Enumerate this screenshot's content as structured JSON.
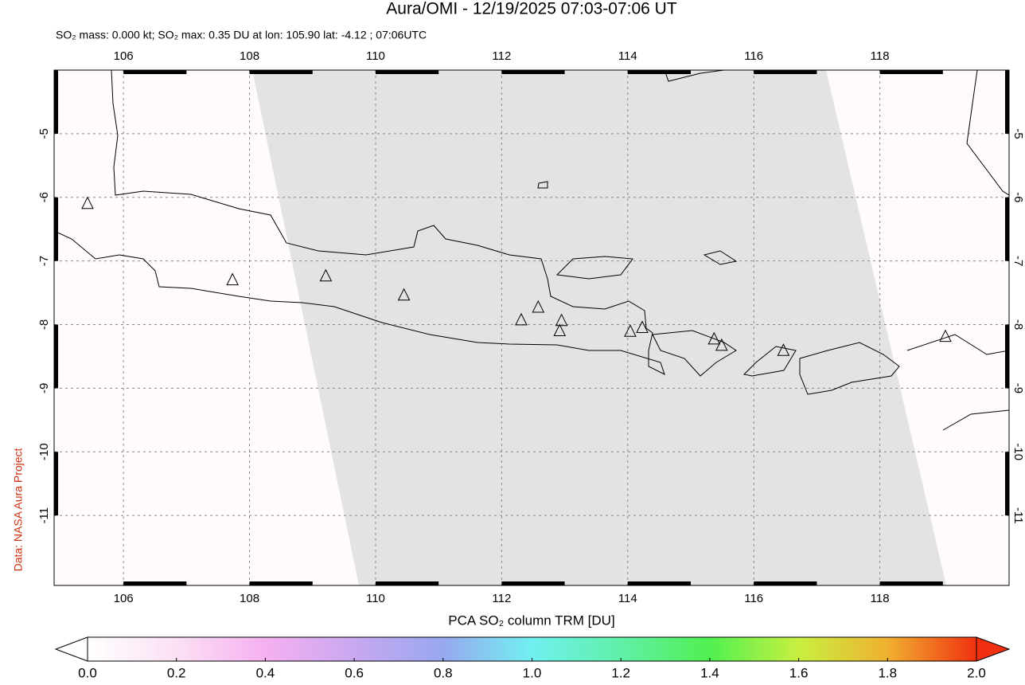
{
  "title": "Aura/OMI - 12/19/2025 07:03-07:06 UT",
  "subtitle": "SO₂ mass: 0.000 kt; SO₂ max: 0.35 DU at lon: 105.90 lat: -4.12 ; 07:06UTC",
  "credit": "Data: NASA Aura Project",
  "map": {
    "lon_lim": [
      104.9,
      120.05
    ],
    "lat_lim": [
      -4,
      -12.1
    ],
    "lon_ticks": [
      106,
      108,
      110,
      112,
      114,
      116,
      118
    ],
    "lat_ticks": [
      -5,
      -6,
      -7,
      -8,
      -9,
      -10,
      -11
    ],
    "volcanoes": [
      {
        "lon": 105.43,
        "lat": -6.1
      },
      {
        "lon": 107.73,
        "lat": -7.3
      },
      {
        "lon": 109.21,
        "lat": -7.24
      },
      {
        "lon": 110.45,
        "lat": -7.54
      },
      {
        "lon": 112.31,
        "lat": -7.93
      },
      {
        "lon": 112.58,
        "lat": -7.73
      },
      {
        "lon": 112.95,
        "lat": -7.94
      },
      {
        "lon": 112.92,
        "lat": -8.1
      },
      {
        "lon": 114.04,
        "lat": -8.11
      },
      {
        "lon": 114.23,
        "lat": -8.05
      },
      {
        "lon": 115.37,
        "lat": -8.23
      },
      {
        "lon": 115.49,
        "lat": -8.33
      },
      {
        "lon": 116.47,
        "lat": -8.41
      },
      {
        "lon": 119.04,
        "lat": -8.19
      }
    ]
  },
  "colorbar": {
    "label": "PCA SO₂ column TRM [DU]",
    "lim": [
      0,
      2
    ],
    "ticks": [
      {
        "value": 0,
        "label": "0.0"
      },
      {
        "value": 0.2,
        "label": "0.2"
      },
      {
        "value": 0.4,
        "label": "0.4"
      },
      {
        "value": 0.6,
        "label": "0.6"
      },
      {
        "value": 0.8,
        "label": "0.8"
      },
      {
        "value": 1,
        "label": "1.0"
      },
      {
        "value": 1.2,
        "label": "1.2"
      },
      {
        "value": 1.4,
        "label": "1.4"
      },
      {
        "value": 1.6,
        "label": "1.6"
      },
      {
        "value": 1.8,
        "label": "1.8"
      },
      {
        "value": 2,
        "label": "2.0"
      }
    ]
  }
}
